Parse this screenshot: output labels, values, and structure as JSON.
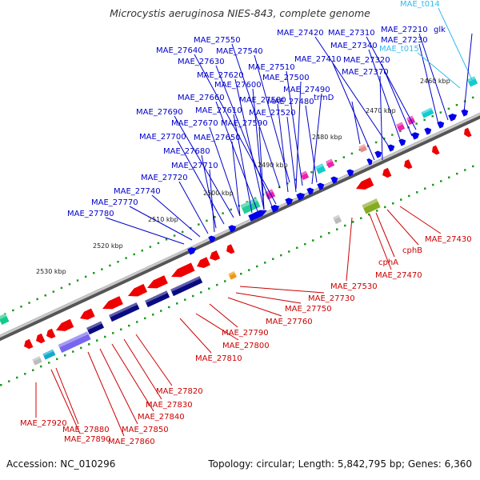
{
  "title": "Microcystis aeruginosa NIES-843, complete genome",
  "footer": {
    "accession": "Accession: NC_010296",
    "summary": "Topology: circular; Length: 5,842,795 bp; Genes: 6,360"
  },
  "colors": {
    "blue_label": "#0000cc",
    "red_label": "#cc0000",
    "cyan_label": "#33bbee",
    "forward_gene": "#0000ee",
    "reverse_gene": "#ee0000",
    "dot": "#229922"
  },
  "ticks": [
    "2460 kbp",
    "2470 kbp",
    "2480 kbp",
    "2490 kbp",
    "2500 kbp",
    "2510 kbp",
    "2520 kbp",
    "2530 kbp"
  ],
  "labels_top": [
    "MAE_t014",
    "MAE_27210",
    "glk",
    "MAE_27310",
    "MAE_27420",
    "MAE_27230",
    "MAE_27550",
    "MAE_27340",
    "MAE_27640",
    "MAE_27540",
    "MAE_t015",
    "MAE_27630",
    "MAE_27410",
    "MAE_27320",
    "MAE_27510",
    "MAE_27620",
    "MAE_27500",
    "MAE_27370",
    "MAE_27600",
    "MAE_27490",
    "MAE_27660",
    "MAE_27580",
    "trmD",
    "MAE_27610",
    "MAE_27480",
    "MAE_27690",
    "MAE_27520",
    "MAE_27670",
    "MAE_27590",
    "MAE_27650",
    "MAE_27700",
    "MAE_27680",
    "MAE_27710",
    "MAE_27720",
    "MAE_27740",
    "MAE_27770",
    "MAE_27780"
  ],
  "labels_bottom": [
    "MAE_27430",
    "cphB",
    "cphA",
    "MAE_27470",
    "MAE_27530",
    "MAE_27730",
    "MAE_27750",
    "MAE_27760",
    "MAE_27790",
    "MAE_27800",
    "MAE_27810",
    "MAE_27820",
    "MAE_27830",
    "MAE_27840",
    "MAE_27850",
    "MAE_27860",
    "MAE_27920",
    "MAE_27880",
    "MAE_27890"
  ]
}
